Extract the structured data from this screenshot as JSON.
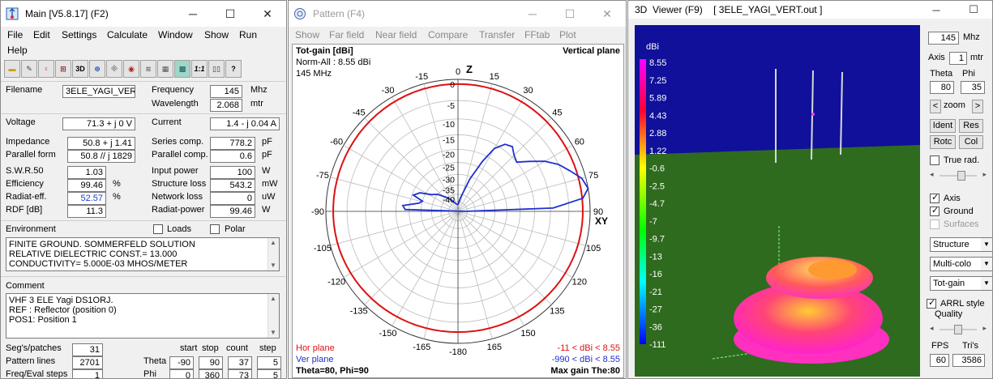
{
  "main": {
    "title": "Main [V5.8.17]   (F2)",
    "menu": [
      "File",
      "Edit",
      "Settings",
      "Calculate",
      "Window",
      "Show",
      "Run",
      "Help"
    ],
    "filename_label": "Filename",
    "filename": "3ELE_YAGI_VER",
    "frequency_label": "Frequency",
    "frequency": "145",
    "frequency_unit": "Mhz",
    "wavelength_label": "Wavelength",
    "wavelength": "2.068",
    "wavelength_unit": "mtr",
    "voltage_label": "Voltage",
    "voltage": "71.3 + j 0 V",
    "current_label": "Current",
    "current": "1.4 - j 0.04 A",
    "impedance_label": "Impedance",
    "impedance": "50.8 + j 1.41",
    "series_comp_label": "Series comp.",
    "series_comp": "778.2",
    "series_comp_unit": "pF",
    "parallel_form_label": "Parallel form",
    "parallel_form": "50.8 // j 1829",
    "parallel_comp_label": "Parallel comp.",
    "parallel_comp": "0.6",
    "parallel_comp_unit": "pF",
    "swr_label": "S.W.R.50",
    "swr": "1.03",
    "input_power_label": "Input power",
    "input_power": "100",
    "input_power_unit": "W",
    "efficiency_label": "Efficiency",
    "efficiency": "99.46",
    "efficiency_unit": "%",
    "structure_loss_label": "Structure loss",
    "structure_loss": "543.2",
    "structure_loss_unit": "mW",
    "radiat_eff_label": "Radiat-eff.",
    "radiat_eff": "52.57",
    "radiat_eff_unit": "%",
    "network_loss_label": "Network loss",
    "network_loss": "0",
    "network_loss_unit": "uW",
    "rdf_label": "RDF [dB]",
    "rdf": "11.3",
    "radiat_power_label": "Radiat-power",
    "radiat_power": "99.46",
    "radiat_power_unit": "W",
    "environment_label": "Environment",
    "loads_label": "Loads",
    "polar_label": "Polar",
    "environment_lines": [
      "FINITE GROUND.  SOMMERFELD SOLUTION",
      "RELATIVE DIELECTRIC CONST.= 13.000",
      "CONDUCTIVITY= 5.000E-03 MHOS/METER"
    ],
    "comment_label": "Comment",
    "comment_lines": [
      "VHF 3 ELE Yagi DS1ORJ.",
      "REF : Reflector (position 0)",
      "POS1: Position 1"
    ],
    "segs_label": "Seg's/patches",
    "segs": "31",
    "pattern_lines_label": "Pattern lines",
    "pattern_lines": "2701",
    "freq_eval_label": "Freq/Eval steps",
    "freq_eval": "1",
    "col_start": "start",
    "col_stop": "stop",
    "col_count": "count",
    "col_step": "step",
    "theta_label": "Theta",
    "theta_start": "-90",
    "theta_stop": "90",
    "theta_count": "37",
    "theta_step": "5",
    "phi_label": "Phi",
    "phi_start": "0",
    "phi_stop": "360",
    "phi_count": "73",
    "phi_step": "5"
  },
  "pattern": {
    "title": "Pattern   (F4)",
    "menu": [
      "Show",
      "Far field",
      "Near field",
      "Compare",
      "Transfer",
      "FFtab",
      "Plot"
    ],
    "tot_gain": "Tot-gain [dBi]",
    "norm": "Norm-All : 8.55 dBi",
    "freq": "145 MHz",
    "plane": "Vertical plane",
    "z_label": "Z",
    "xy_label": "XY",
    "angle_labels": {
      "a0": "0",
      "a15": "15",
      "a30": "30",
      "a45": "45",
      "a60": "60",
      "a75": "75",
      "a90": "90",
      "a105": "105",
      "a120": "120",
      "a135": "135",
      "a150": "150",
      "a165": "165",
      "a180": "-180",
      "m15": "-15",
      "m30": "-30",
      "m45": "-45",
      "m60": "-60",
      "m75": "-75",
      "m90": "-90",
      "m105": "-105",
      "m120": "-120",
      "m135": "-135",
      "m150": "-150",
      "m165": "-165"
    },
    "radial_labels": [
      "0",
      "-5",
      "-10",
      "-15",
      "-20",
      "-25",
      "-30",
      "-35",
      "-40"
    ],
    "hor_plane": "Hor plane",
    "ver_plane": "Ver plane",
    "hor_range": "-11 < dBi < 8.55",
    "ver_range": "-990 < dBi < 8.55",
    "theta_phi": "Theta=80, Phi=90",
    "max_gain": "Max gain The:80",
    "hor_color": "#dd1111",
    "ver_color": "#1f2fd0"
  },
  "viewer": {
    "title": "3D  Viewer (F9)    [ 3ELE_YAGI_VERT.out ]",
    "scale_label": "dBi",
    "scale_values": [
      "8.55",
      "7.25",
      "5.89",
      "4.43",
      "2.88",
      "1.22",
      "-0.6",
      "-2.5",
      "-4.7",
      "-7",
      "-9.7",
      "-13",
      "-16",
      "-21",
      "-27",
      "-36",
      "-111"
    ],
    "freq": "145",
    "freq_unit": "Mhz",
    "axis_label": "Axis",
    "axis": "1",
    "axis_unit": "mtr",
    "theta_label": "Theta",
    "phi_label": "Phi",
    "theta": "80",
    "phi": "35",
    "zoom_left": "<",
    "zoom_label": "zoom",
    "zoom_right": ">",
    "ident": "Ident",
    "res": "Res",
    "rotc": "Rotc",
    "col": "Col",
    "true_rad": "True rad.",
    "axis_cb": "Axis",
    "ground_cb": "Ground",
    "surfaces_cb": "Surfaces",
    "structure": "Structure",
    "multicolor": "Multi-colo",
    "totgain": "Tot-gain",
    "arrl_style": "ARRL style",
    "quality": "Quality",
    "fps_label": "FPS",
    "tris_label": "Tri's",
    "fps": "60",
    "tris": "3586"
  }
}
